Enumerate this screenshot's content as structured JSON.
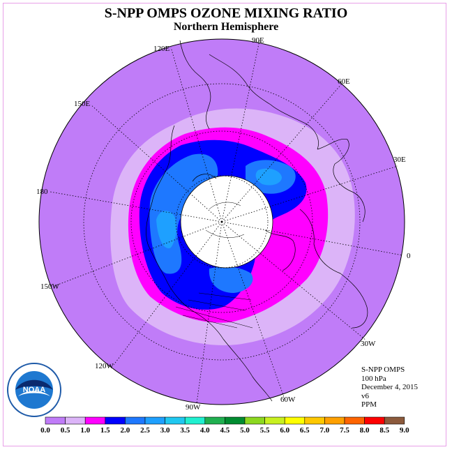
{
  "title": "S-NPP OMPS OZONE MIXING RATIO",
  "subtitle": "Northern Hemisphere",
  "longitude_labels": [
    "90E",
    "60E",
    "30E",
    "0",
    "30W",
    "60W",
    "90W",
    "120W",
    "150W",
    "180",
    "150E",
    "120E"
  ],
  "info": [
    "S-NPP OMPS",
    "100 hPa",
    "December 4, 2015",
    "v6",
    "PPM"
  ],
  "logo_text": "NOAA",
  "legend": {
    "ticks": [
      "0.0",
      "0.5",
      "1.0",
      "1.5",
      "2.0",
      "2.5",
      "3.0",
      "3.5",
      "4.0",
      "4.5",
      "5.0",
      "5.5",
      "6.0",
      "6.5",
      "7.0",
      "7.5",
      "8.0",
      "8.5",
      "9.0"
    ],
    "colors": [
      "#c07cf8",
      "#dcb4f8",
      "#ff00ff",
      "#0000ff",
      "#1e78ff",
      "#1ea0ff",
      "#20c8f0",
      "#20f0d0",
      "#20b050",
      "#008c30",
      "#8cd820",
      "#c8f020",
      "#ffff00",
      "#ffc800",
      "#ffa000",
      "#ff6400",
      "#ff0000",
      "#8c5a3c"
    ]
  }
}
